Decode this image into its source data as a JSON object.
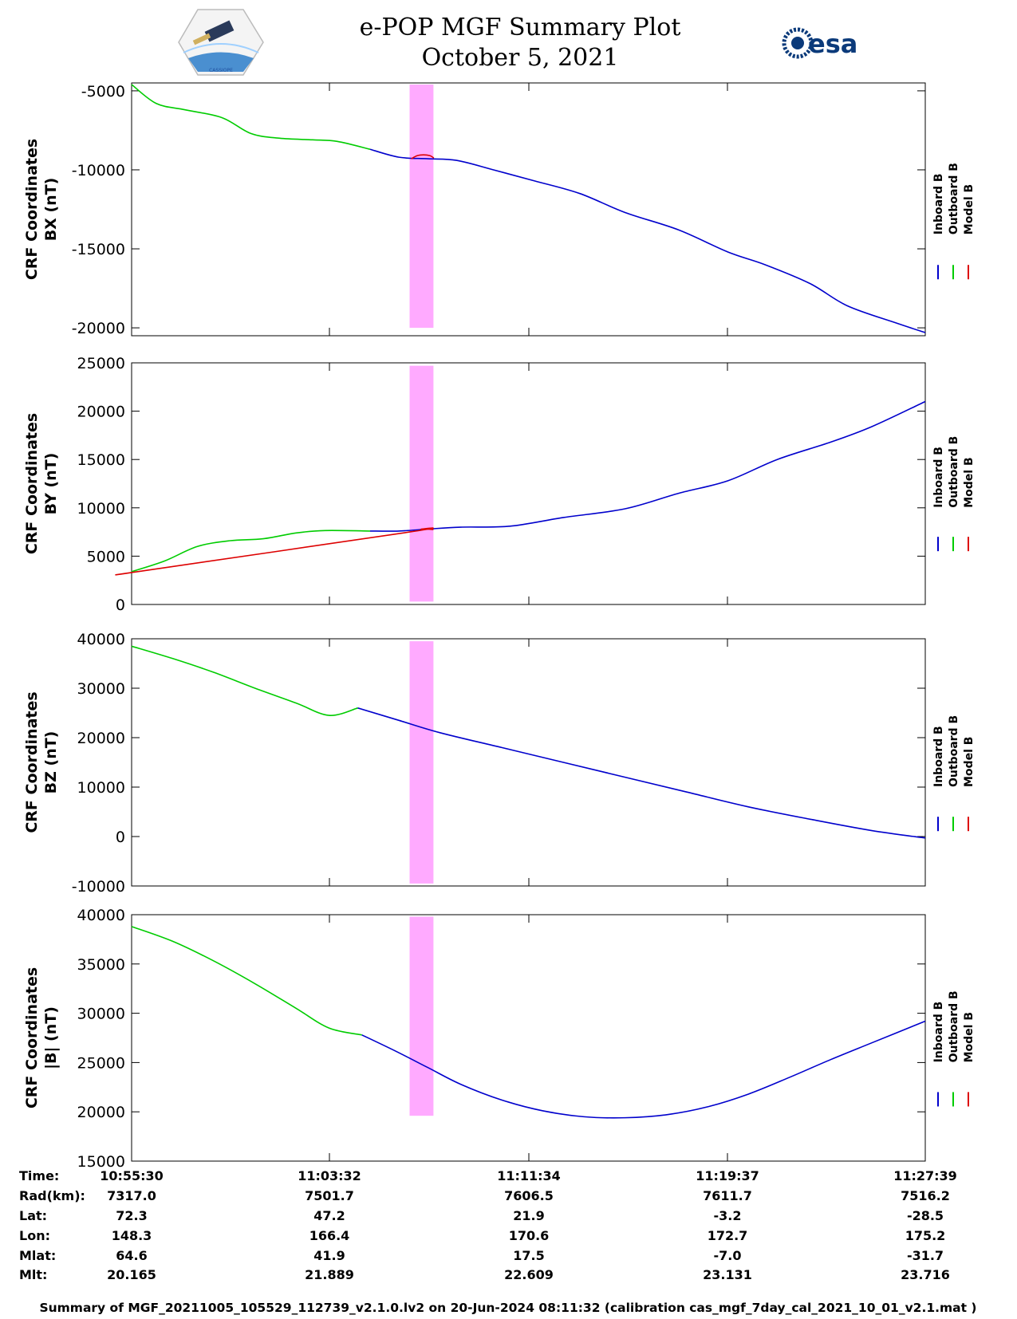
{
  "header": {
    "title": "e-POP MGF Summary Plot",
    "date": "October 5, 2021",
    "logo_left_text": "CASSIOPE",
    "logo_right_text": "esa"
  },
  "legend": {
    "labels": [
      "Inboard B",
      "Outboard B",
      "Model B"
    ]
  },
  "colors": {
    "inboard": "#0000cc",
    "outboard": "#00cc00",
    "model": "#dd0000",
    "highlight": "#ffaaff"
  },
  "chart_data": [
    {
      "type": "line",
      "ylabel_line1": "CRF Coordinates",
      "ylabel_line2": "BX (nT)",
      "ylim": [
        -20500,
        -4500
      ],
      "yticks": [
        -5000,
        -10000,
        -15000,
        -20000
      ],
      "xlim_seconds": [
        0,
        1930
      ],
      "highlight_seconds": [
        676,
        734
      ],
      "highlight_y": [
        -20000,
        -4600
      ],
      "series": [
        {
          "name": "Outboard B",
          "x": [
            0,
            60,
            130,
            220,
            290,
            360,
            440,
            500,
            580
          ],
          "y": [
            -4600,
            -5800,
            -6200,
            -6700,
            -7700,
            -8000,
            -8100,
            -8200,
            -8700
          ]
        },
        {
          "name": "Inboard B",
          "x": [
            580,
            650,
            720,
            790,
            880,
            980,
            1090,
            1200,
            1330,
            1450,
            1540,
            1650,
            1740,
            1860,
            1930
          ],
          "y": [
            -8700,
            -9200,
            -9300,
            -9400,
            -10000,
            -10700,
            -11500,
            -12700,
            -13800,
            -15200,
            -16000,
            -17200,
            -18600,
            -19700,
            -20300
          ]
        },
        {
          "name": "Model B",
          "x": [
            680,
            695,
            710,
            725,
            735
          ],
          "y": [
            -9300,
            -9100,
            -9050,
            -9100,
            -9250
          ]
        }
      ]
    },
    {
      "type": "line",
      "ylabel_line1": "CRF Coordinates",
      "ylabel_line2": "BY (nT)",
      "ylim": [
        0,
        25000
      ],
      "yticks": [
        25000,
        20000,
        15000,
        10000,
        5000,
        0
      ],
      "xlim_seconds": [
        0,
        1930
      ],
      "highlight_seconds": [
        676,
        734
      ],
      "highlight_y": [
        300,
        24700
      ],
      "series": [
        {
          "name": "Outboard B",
          "x": [
            0,
            80,
            160,
            240,
            320,
            400,
            470,
            580
          ],
          "y": [
            3400,
            4500,
            6000,
            6600,
            6800,
            7400,
            7650,
            7600
          ]
        },
        {
          "name": "Inboard B",
          "x": [
            580,
            650,
            720,
            800,
            920,
            1050,
            1200,
            1330,
            1450,
            1570,
            1700,
            1800,
            1930
          ],
          "y": [
            7600,
            7600,
            7800,
            8000,
            8100,
            9000,
            9900,
            11500,
            12800,
            15000,
            16800,
            18400,
            21000
          ]
        },
        {
          "name": "Model B",
          "x": [
            0,
            15,
            676,
            705,
            734
          ],
          "y": [
            3300,
            3400,
            7500,
            7800,
            7750
          ]
        }
      ]
    },
    {
      "type": "line",
      "ylabel_line1": "CRF Coordinates",
      "ylabel_line2": "BZ (nT)",
      "ylim": [
        -10000,
        40000
      ],
      "yticks": [
        40000,
        30000,
        20000,
        10000,
        0,
        -10000
      ],
      "xlim_seconds": [
        0,
        1930
      ],
      "highlight_seconds": [
        676,
        734
      ],
      "highlight_y": [
        -9500,
        39500
      ],
      "series": [
        {
          "name": "Outboard B",
          "x": [
            0,
            100,
            200,
            300,
            400,
            480,
            550
          ],
          "y": [
            38500,
            36000,
            33200,
            30000,
            27000,
            24500,
            26000
          ]
        },
        {
          "name": "Inboard B",
          "x": [
            550,
            650,
            750,
            900,
            1050,
            1200,
            1350,
            1500,
            1650,
            1800,
            1930
          ],
          "y": [
            26000,
            23500,
            21000,
            18000,
            15000,
            12000,
            9000,
            6000,
            3500,
            1200,
            -300
          ]
        }
      ]
    },
    {
      "type": "line",
      "ylabel_line1": "CRF Coordinates",
      "ylabel_line2": "|B| (nT)",
      "ylim": [
        15000,
        40000
      ],
      "yticks": [
        40000,
        35000,
        30000,
        25000,
        20000,
        15000
      ],
      "xlim_seconds": [
        0,
        1930
      ],
      "highlight_seconds": [
        676,
        734
      ],
      "highlight_y": [
        19600,
        39800
      ],
      "series": [
        {
          "name": "Outboard B",
          "x": [
            0,
            100,
            200,
            300,
            400,
            480,
            560
          ],
          "y": [
            38800,
            37300,
            35300,
            33000,
            30500,
            28500,
            27800
          ]
        },
        {
          "name": "Inboard B",
          "x": [
            560,
            640,
            720,
            800,
            900,
            1000,
            1100,
            1200,
            1300,
            1400,
            1500,
            1600,
            1700,
            1800,
            1930
          ],
          "y": [
            27800,
            26200,
            24500,
            22800,
            21200,
            20100,
            19500,
            19400,
            19700,
            20500,
            21800,
            23500,
            25300,
            27000,
            29200
          ]
        }
      ]
    }
  ],
  "ephemeris": {
    "row_labels": [
      "Time:",
      "Rad(km):",
      "Lat:",
      "Lon:",
      "Mlat:",
      "Mlt:"
    ],
    "columns": [
      [
        "10:55:30",
        "7317.0",
        "72.3",
        "148.3",
        "64.6",
        "20.165"
      ],
      [
        "11:03:32",
        "7501.7",
        "47.2",
        "166.4",
        "41.9",
        "21.889"
      ],
      [
        "11:11:34",
        "7606.5",
        "21.9",
        "170.6",
        "17.5",
        "22.609"
      ],
      [
        "11:19:37",
        "7611.7",
        "-3.2",
        "172.7",
        "-7.0",
        "23.131"
      ],
      [
        "11:27:39",
        "7516.2",
        "-28.5",
        "175.2",
        "-31.7",
        "23.716"
      ]
    ]
  },
  "footer": "Summary of MGF_20211005_105529_112739_v2.1.0.lv2 on 20-Jun-2024 08:11:32 (calibration cas_mgf_7day_cal_2021_10_01_v2.1.mat )"
}
